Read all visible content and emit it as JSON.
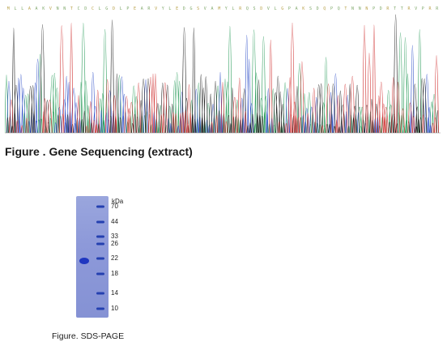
{
  "sequencing": {
    "caption": "Figure . Gene Sequencing (extract)",
    "base_colors": {
      "A": "#2e9e5e",
      "C": "#3050c8",
      "G": "#222222",
      "T": "#d23a3a"
    },
    "header_letters": "MLLAAKVNNTCDCLGDLPEARVYLEDGSVAMYLRQSDVLGPAKSDQPQTNNNPDRTTRVPRR"
  },
  "gel": {
    "caption": "Figure. SDS-PAGE",
    "unit_label": "kDa",
    "ladder": [
      "70",
      "44",
      "33",
      "26",
      "22",
      "18",
      "14",
      "10"
    ],
    "ladder_color": "#2440b0",
    "sample_band_color": "#1f37c0"
  }
}
